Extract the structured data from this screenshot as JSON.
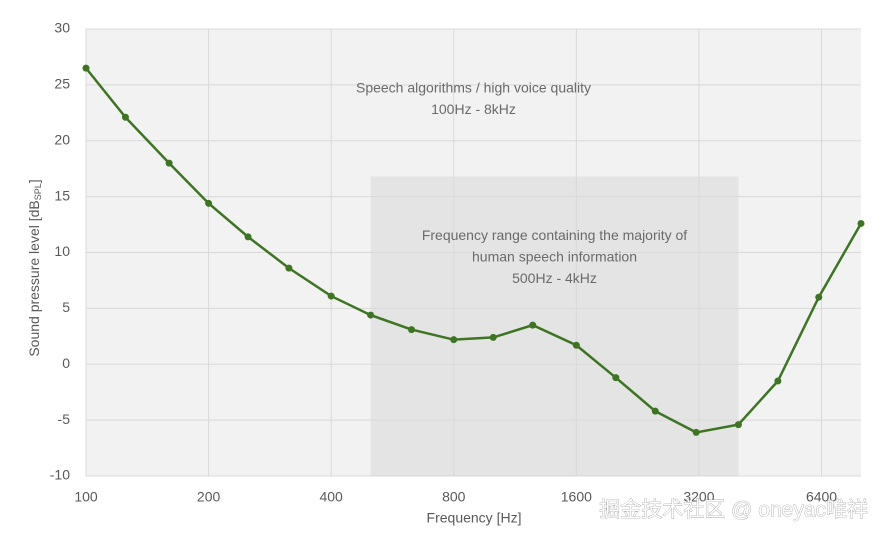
{
  "chart_data": {
    "type": "line",
    "y_label": "Sound pressure level [dB",
    "y_label_sub": "SPL",
    "y_label_end": "]",
    "x_label": "Frequency [Hz]",
    "x": [
      100,
      125,
      160,
      200,
      250,
      315,
      400,
      500,
      630,
      800,
      1000,
      1250,
      1600,
      2000,
      2500,
      3150,
      4000,
      5000,
      6300,
      8000
    ],
    "series": [
      {
        "color": "#3d7523",
        "values": [
          26.5,
          22.1,
          18.0,
          14.4,
          11.4,
          8.6,
          6.1,
          4.4,
          3.1,
          2.2,
          2.4,
          3.5,
          1.7,
          -1.2,
          -4.2,
          -6.1,
          -5.4,
          -1.5,
          6.0,
          12.6
        ]
      }
    ],
    "xlim": [
      100,
      8000
    ],
    "xscale": "log",
    "xticks": [
      100,
      200,
      400,
      800,
      1600,
      3200,
      6400
    ],
    "ylim": [
      -10,
      30
    ],
    "yticks": [
      -10,
      -5,
      0,
      5,
      10,
      15,
      20,
      25,
      30
    ],
    "grid": true,
    "regions": [
      {
        "xlim": [
          100,
          8000
        ],
        "ylim": [
          -10,
          30
        ],
        "color": "#f2f2f2",
        "lines": [
          "Speech algorithms / high voice quality",
          "100Hz - 8kHz"
        ]
      },
      {
        "xlim": [
          500,
          4000
        ],
        "ylim": [
          -10,
          16.8
        ],
        "color": "#e4e4e4",
        "lines": [
          "Frequency range containing the majority of",
          "human speech information",
          "500Hz - 4kHz"
        ]
      }
    ]
  },
  "watermark": "掘金技术社区 @ oneyac唯祥"
}
